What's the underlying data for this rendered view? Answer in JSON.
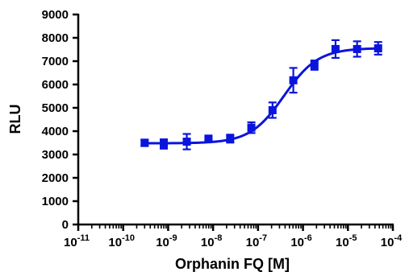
{
  "chart_data": {
    "type": "scatter",
    "title": "",
    "xlabel": "Orphanin FQ [M]",
    "ylabel": "RLU",
    "x_scale": "log",
    "xlim": [
      1e-11,
      0.0001
    ],
    "ylim": [
      0,
      9000
    ],
    "y_ticks": [
      0,
      1000,
      2000,
      3000,
      4000,
      5000,
      6000,
      7000,
      8000,
      9000
    ],
    "y_tick_labels": [
      "0",
      "1000",
      "2000",
      "3000",
      "4000",
      "5000",
      "6000",
      "7000",
      "8000",
      "9000"
    ],
    "x_ticks": [
      1e-11,
      1e-10,
      1e-09,
      1e-08,
      1e-07,
      1e-06,
      1e-05,
      0.0001
    ],
    "x_tick_labels": [
      {
        "base": "10",
        "exp": "-11"
      },
      {
        "base": "10",
        "exp": "-10"
      },
      {
        "base": "10",
        "exp": "-9"
      },
      {
        "base": "10",
        "exp": "-8"
      },
      {
        "base": "10",
        "exp": "-7"
      },
      {
        "base": "10",
        "exp": "-6"
      },
      {
        "base": "10",
        "exp": "-5"
      },
      {
        "base": "10",
        "exp": "-4"
      }
    ],
    "grid": false,
    "legend": "none",
    "color": "#0a14dc",
    "marker": "square",
    "series": [
      {
        "x": [
          3e-10,
          8e-10,
          2.6e-09,
          7.9e-09,
          2.4e-08,
          7.1e-08,
          2.1e-07,
          6.1e-07,
          1.8e-06,
          5.3e-06,
          1.6e-05,
          4.7e-05
        ],
        "y": [
          3500,
          3450,
          3550,
          3680,
          3680,
          4150,
          4900,
          6180,
          6830,
          7520,
          7520,
          7550
        ],
        "error": [
          140,
          200,
          330,
          70,
          170,
          230,
          330,
          530,
          200,
          380,
          330,
          270
        ]
      }
    ],
    "fit": {
      "model": "sigmoidal dose-response",
      "bottom": 3480,
      "top": 7560,
      "log_ec50": -6.42,
      "hill_slope": 1.15
    }
  }
}
